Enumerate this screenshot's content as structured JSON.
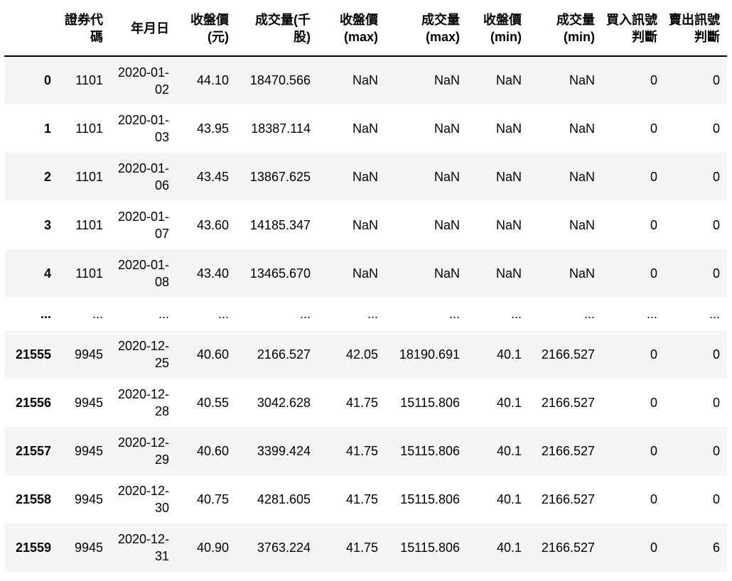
{
  "table": {
    "columns": [
      "",
      "證券代碼",
      "年月日",
      "收盤價(元)",
      "成交量(千股)",
      "收盤價(max)",
      "成交量(max)",
      "收盤價(min)",
      "成交量(min)",
      "買入訊號判斷",
      "賣出訊號判斷"
    ],
    "rows": [
      [
        "0",
        "1101",
        "2020-01-02",
        "44.10",
        "18470.566",
        "NaN",
        "NaN",
        "NaN",
        "NaN",
        "0",
        "0"
      ],
      [
        "1",
        "1101",
        "2020-01-03",
        "43.95",
        "18387.114",
        "NaN",
        "NaN",
        "NaN",
        "NaN",
        "0",
        "0"
      ],
      [
        "2",
        "1101",
        "2020-01-06",
        "43.45",
        "13867.625",
        "NaN",
        "NaN",
        "NaN",
        "NaN",
        "0",
        "0"
      ],
      [
        "3",
        "1101",
        "2020-01-07",
        "43.60",
        "14185.347",
        "NaN",
        "NaN",
        "NaN",
        "NaN",
        "0",
        "0"
      ],
      [
        "4",
        "1101",
        "2020-01-08",
        "43.40",
        "13465.670",
        "NaN",
        "NaN",
        "NaN",
        "NaN",
        "0",
        "0"
      ],
      [
        "...",
        "...",
        "...",
        "...",
        "...",
        "...",
        "...",
        "...",
        "...",
        "...",
        "..."
      ],
      [
        "21555",
        "9945",
        "2020-12-25",
        "40.60",
        "2166.527",
        "42.05",
        "18190.691",
        "40.1",
        "2166.527",
        "0",
        "0"
      ],
      [
        "21556",
        "9945",
        "2020-12-28",
        "40.55",
        "3042.628",
        "41.75",
        "15115.806",
        "40.1",
        "2166.527",
        "0",
        "0"
      ],
      [
        "21557",
        "9945",
        "2020-12-29",
        "40.60",
        "3399.424",
        "41.75",
        "15115.806",
        "40.1",
        "2166.527",
        "0",
        "0"
      ],
      [
        "21558",
        "9945",
        "2020-12-30",
        "40.75",
        "4281.605",
        "41.75",
        "15115.806",
        "40.1",
        "2166.527",
        "0",
        "0"
      ],
      [
        "21559",
        "9945",
        "2020-12-31",
        "40.90",
        "3763.224",
        "41.75",
        "15115.806",
        "40.1",
        "2166.527",
        "0",
        "6"
      ]
    ]
  }
}
